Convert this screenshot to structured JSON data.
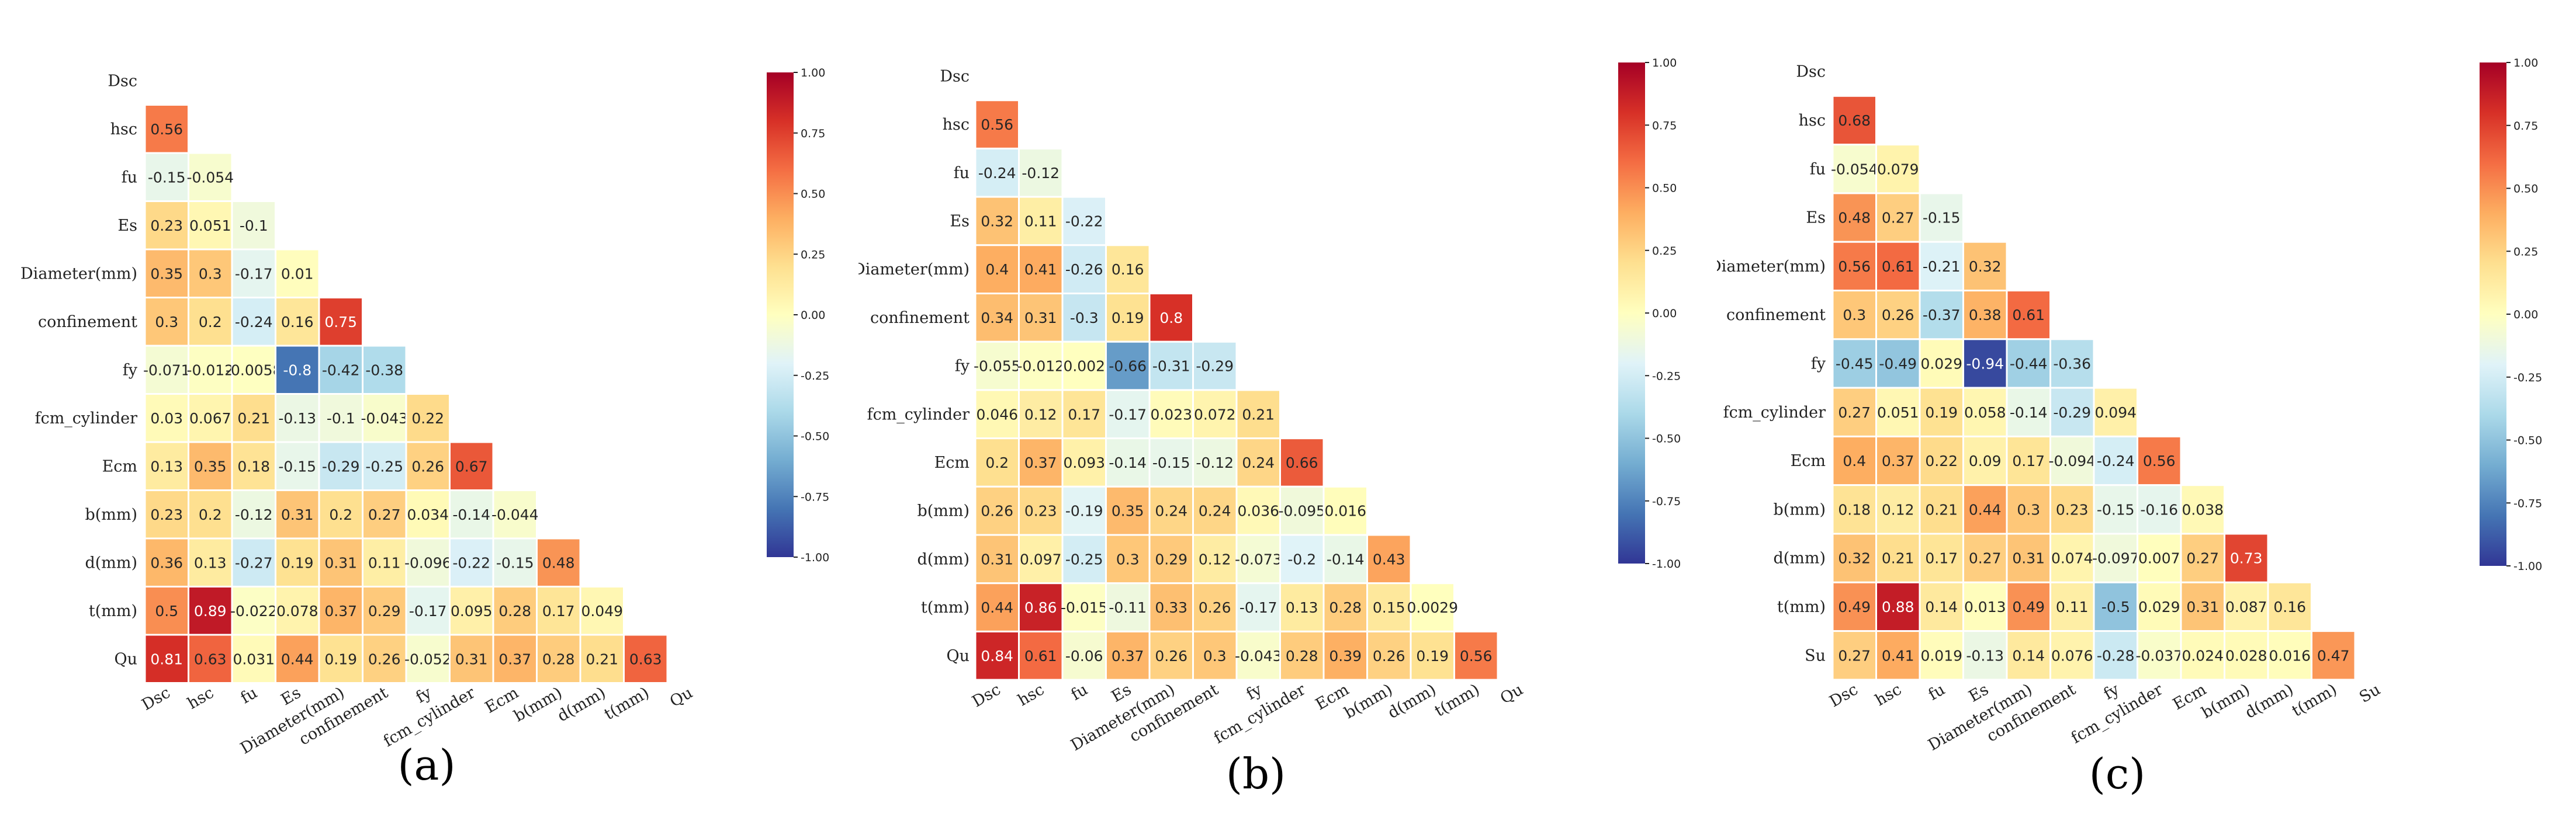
{
  "chart_data": [
    {
      "type": "heatmap",
      "panel_label": "(a)",
      "row_labels": [
        "Dsc",
        "hsc",
        "fu",
        "Es",
        "Diameter(mm)",
        "confinement",
        "fy",
        "fcm_cylinder",
        "Ecm",
        "b(mm)",
        "d(mm)",
        "t(mm)",
        "Qu"
      ],
      "col_labels": [
        "Dsc",
        "hsc",
        "fu",
        "Es",
        "Diameter(mm)",
        "confinement",
        "fy",
        "fcm_cylinder",
        "Ecm",
        "b(mm)",
        "d(mm)",
        "t(mm)",
        "Qu"
      ],
      "values": [
        [],
        [
          "0.56"
        ],
        [
          "-0.15",
          "-0.054"
        ],
        [
          "0.23",
          "0.051",
          "-0.1"
        ],
        [
          "0.35",
          "0.3",
          "-0.17",
          "0.01"
        ],
        [
          "0.3",
          "0.2",
          "-0.24",
          "0.16",
          "0.75"
        ],
        [
          "-0.071",
          "-0.012",
          "-0.0058",
          "-0.8",
          "-0.42",
          "-0.38"
        ],
        [
          "0.03",
          "0.067",
          "0.21",
          "-0.13",
          "-0.1",
          "-0.043",
          "0.22"
        ],
        [
          "0.13",
          "0.35",
          "0.18",
          "-0.15",
          "-0.29",
          "-0.25",
          "0.26",
          "0.67"
        ],
        [
          "0.23",
          "0.2",
          "-0.12",
          "0.31",
          "0.2",
          "0.27",
          "0.034",
          "-0.14",
          "-0.044"
        ],
        [
          "0.36",
          "0.13",
          "-0.27",
          "0.19",
          "0.31",
          "0.11",
          "-0.096",
          "-0.22",
          "-0.15",
          "0.48"
        ],
        [
          "0.5",
          "0.89",
          "-0.022",
          "0.078",
          "0.37",
          "0.29",
          "-0.17",
          "0.095",
          "0.28",
          "0.17",
          "0.049"
        ],
        [
          "0.81",
          "0.63",
          "0.031",
          "0.44",
          "0.19",
          "0.26",
          "-0.052",
          "0.31",
          "0.37",
          "0.28",
          "0.21",
          "0.63"
        ]
      ],
      "colorbar": {
        "colormap": "RdYlBu_r",
        "vmin": -1.0,
        "vmax": 1.0,
        "ticks": [
          "1.00",
          "0.75",
          "0.50",
          "0.25",
          "0.00",
          "-0.25",
          "-0.50",
          "-0.75",
          "-1.00"
        ]
      }
    },
    {
      "type": "heatmap",
      "panel_label": "(b)",
      "row_labels": [
        "Dsc",
        "hsc",
        "fu",
        "Es",
        "Diameter(mm)",
        "confinement",
        "fy",
        "fcm_cylinder",
        "Ecm",
        "b(mm)",
        "d(mm)",
        "t(mm)",
        "Qu"
      ],
      "col_labels": [
        "Dsc",
        "hsc",
        "fu",
        "Es",
        "Diameter(mm)",
        "confinement",
        "fy",
        "fcm_cylinder",
        "Ecm",
        "b(mm)",
        "d(mm)",
        "t(mm)",
        "Qu"
      ],
      "values": [
        [],
        [
          "0.56"
        ],
        [
          "-0.24",
          "-0.12"
        ],
        [
          "0.32",
          "0.11",
          "-0.22"
        ],
        [
          "0.4",
          "0.41",
          "-0.26",
          "0.16"
        ],
        [
          "0.34",
          "0.31",
          "-0.3",
          "0.19",
          "0.8"
        ],
        [
          "-0.055",
          "-0.012",
          "0.002",
          "-0.66",
          "-0.31",
          "-0.29"
        ],
        [
          "0.046",
          "0.12",
          "0.17",
          "-0.17",
          "0.023",
          "0.072",
          "0.21"
        ],
        [
          "0.2",
          "0.37",
          "0.093",
          "-0.14",
          "-0.15",
          "-0.12",
          "0.24",
          "0.66"
        ],
        [
          "0.26",
          "0.23",
          "-0.19",
          "0.35",
          "0.24",
          "0.24",
          "0.036",
          "-0.095",
          "0.016"
        ],
        [
          "0.31",
          "0.097",
          "-0.25",
          "0.3",
          "0.29",
          "0.12",
          "-0.073",
          "-0.2",
          "-0.14",
          "0.43"
        ],
        [
          "0.44",
          "0.86",
          "-0.015",
          "-0.11",
          "0.33",
          "0.26",
          "-0.17",
          "0.13",
          "0.28",
          "0.15",
          "0.0029"
        ],
        [
          "0.84",
          "0.61",
          "-0.06",
          "0.37",
          "0.26",
          "0.3",
          "-0.043",
          "0.28",
          "0.39",
          "0.26",
          "0.19",
          "0.56"
        ]
      ],
      "colorbar": {
        "colormap": "RdYlBu_r",
        "vmin": -1.0,
        "vmax": 1.0,
        "ticks": [
          "1.00",
          "0.75",
          "0.50",
          "0.25",
          "0.00",
          "-0.25",
          "-0.50",
          "-0.75",
          "-1.00"
        ]
      }
    },
    {
      "type": "heatmap",
      "panel_label": "(c)",
      "row_labels": [
        "Dsc",
        "hsc",
        "fu",
        "Es",
        "Diameter(mm)",
        "confinement",
        "fy",
        "fcm_cylinder",
        "Ecm",
        "b(mm)",
        "d(mm)",
        "t(mm)",
        "Su"
      ],
      "col_labels": [
        "Dsc",
        "hsc",
        "fu",
        "Es",
        "Diameter(mm)",
        "confinement",
        "fy",
        "fcm_cylinder",
        "Ecm",
        "b(mm)",
        "d(mm)",
        "t(mm)",
        "Su"
      ],
      "values": [
        [],
        [
          "0.68"
        ],
        [
          "-0.054",
          "0.079"
        ],
        [
          "0.48",
          "0.27",
          "-0.15"
        ],
        [
          "0.56",
          "0.61",
          "-0.21",
          "0.32"
        ],
        [
          "0.3",
          "0.26",
          "-0.37",
          "0.38",
          "0.61"
        ],
        [
          "-0.45",
          "-0.49",
          "0.029",
          "-0.94",
          "-0.44",
          "-0.36"
        ],
        [
          "0.27",
          "0.051",
          "0.19",
          "0.058",
          "-0.14",
          "-0.29",
          "0.094"
        ],
        [
          "0.4",
          "0.37",
          "0.22",
          "0.09",
          "0.17",
          "-0.094",
          "-0.24",
          "0.56"
        ],
        [
          "0.18",
          "0.12",
          "0.21",
          "0.44",
          "0.3",
          "0.23",
          "-0.15",
          "-0.16",
          "0.038"
        ],
        [
          "0.32",
          "0.21",
          "0.17",
          "0.27",
          "0.31",
          "0.074",
          "-0.097",
          "0.007",
          "0.27",
          "0.73"
        ],
        [
          "0.49",
          "0.88",
          "0.14",
          "0.013",
          "0.49",
          "0.11",
          "-0.5",
          "0.029",
          "0.31",
          "0.087",
          "0.16"
        ],
        [
          "0.27",
          "0.41",
          "0.019",
          "-0.13",
          "0.14",
          "0.076",
          "-0.28",
          "-0.037",
          "0.024",
          "0.028",
          "0.016",
          "0.47"
        ]
      ],
      "colorbar": {
        "colormap": "RdYlBu_r",
        "vmin": -1.0,
        "vmax": 1.0,
        "ticks": [
          "1.00",
          "0.75",
          "0.50",
          "0.25",
          "0.00",
          "-0.25",
          "-0.50",
          "-0.75",
          "-1.00"
        ]
      }
    }
  ]
}
